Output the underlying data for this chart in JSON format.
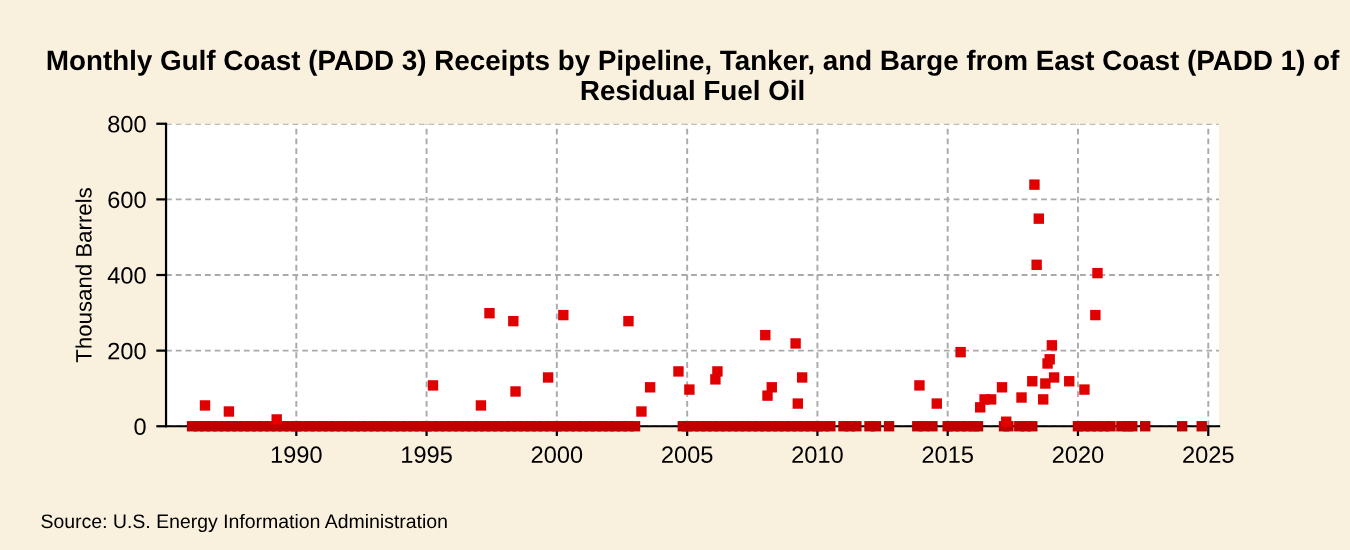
{
  "chart_data": {
    "type": "scatter",
    "title": "Monthly Gulf Coast (PADD 3) Receipts by Pipeline, Tanker, and Barge from East Coast (PADD 1) of Residual Fuel Oil",
    "ylabel": "Thousand Barrels",
    "annotations": [
      "Source: U.S. Energy Information Administration"
    ],
    "xlim": [
      "1985",
      "2025-06"
    ],
    "xticks": [
      "1990",
      "1995",
      "2000",
      "2005",
      "2010",
      "2015",
      "2020",
      "2025"
    ],
    "ylim": [
      0,
      800
    ],
    "yticks": [
      0,
      200,
      400,
      600,
      800
    ],
    "grid": true,
    "marker": "square",
    "series": [
      {
        "color": "#c00000",
        "x": [
          "1986-01",
          "1986-04",
          "1986-07",
          "1986-10",
          "1987-01",
          "1987-04",
          "1987-07",
          "1987-10",
          "1988-01",
          "1988-04",
          "1988-07",
          "1988-10",
          "1989-01",
          "1989-04",
          "1989-07",
          "1989-10",
          "1990-01",
          "1990-04",
          "1990-07",
          "1990-10",
          "1991-01",
          "1991-04",
          "1991-07",
          "1991-10",
          "1992-01",
          "1992-04",
          "1992-07",
          "1992-10",
          "1993-01",
          "1993-04",
          "1993-07",
          "1993-10",
          "1994-01",
          "1994-04",
          "1994-07",
          "1994-10",
          "1995-01",
          "1995-04",
          "1995-07",
          "1995-10",
          "1996-01",
          "1996-04",
          "1996-07",
          "1996-10",
          "1997-01",
          "1997-04",
          "1997-07",
          "1997-10",
          "1998-01",
          "1998-04",
          "1998-07",
          "1998-10",
          "1999-01",
          "1999-04",
          "1999-07",
          "1999-10",
          "2000-01",
          "2000-04",
          "2000-07",
          "2000-10",
          "2001-01",
          "2001-04",
          "2001-07",
          "2001-10",
          "2002-01",
          "2002-04",
          "2002-07",
          "2002-10",
          "2003-01",
          "2004-11",
          "2005-01",
          "2005-04",
          "2005-07",
          "2005-10",
          "2006-01",
          "2006-04",
          "2006-07",
          "2006-10",
          "2007-01",
          "2007-04",
          "2007-07",
          "2007-10",
          "2008-01",
          "2008-04",
          "2008-07",
          "2008-10",
          "2009-01",
          "2009-04",
          "2009-07",
          "2009-10",
          "2010-01",
          "2010-04",
          "2010-07",
          "2011-01",
          "2011-04",
          "2011-07",
          "2012-01",
          "2012-04",
          "2012-10",
          "2013-11",
          "2014-02",
          "2014-06",
          "2015-01",
          "2015-04",
          "2015-07",
          "2015-10",
          "2016-01",
          "2016-03",
          "2017-03",
          "2017-05",
          "2017-10",
          "2018-01",
          "2018-04",
          "2020-01",
          "2020-04",
          "2020-07",
          "2020-10",
          "2021-01",
          "2021-04",
          "2021-09",
          "2021-12",
          "2022-02",
          "2022-08",
          "2024-01",
          "2024-10"
        ],
        "values": [
          0,
          0,
          0,
          0,
          0,
          0,
          0,
          0,
          0,
          0,
          0,
          0,
          0,
          0,
          0,
          0,
          0,
          0,
          0,
          0,
          0,
          0,
          0,
          0,
          0,
          0,
          0,
          0,
          0,
          0,
          0,
          0,
          0,
          0,
          0,
          0,
          0,
          0,
          0,
          0,
          0,
          0,
          0,
          0,
          0,
          0,
          0,
          0,
          0,
          0,
          0,
          0,
          0,
          0,
          0,
          0,
          0,
          0,
          0,
          0,
          0,
          0,
          0,
          0,
          0,
          0,
          0,
          0,
          0,
          0,
          0,
          0,
          0,
          0,
          0,
          0,
          0,
          0,
          0,
          0,
          0,
          0,
          0,
          0,
          0,
          0,
          0,
          0,
          0,
          0,
          0,
          0,
          0,
          0,
          0,
          0,
          0,
          0,
          0,
          0,
          0,
          0,
          0,
          0,
          0,
          0,
          0,
          0,
          0,
          0,
          0,
          0,
          0,
          0,
          0,
          0,
          0,
          0,
          0,
          0,
          0,
          0,
          0,
          0,
          0
        ]
      },
      {
        "color": "#e00000",
        "x": [
          "1986-07",
          "1987-06",
          "1989-04",
          "1995-04",
          "1997-02",
          "1997-06",
          "1998-05",
          "1998-06",
          "1999-09",
          "2000-04",
          "2002-10",
          "2003-04",
          "2003-08",
          "2004-09",
          "2005-02",
          "2006-02",
          "2006-03",
          "2008-01",
          "2008-02",
          "2008-04",
          "2009-03",
          "2009-04",
          "2009-06",
          "2013-12",
          "2014-08",
          "2015-07",
          "2016-04",
          "2016-06",
          "2016-09",
          "2017-02",
          "2017-04",
          "2017-11",
          "2018-04",
          "2018-05",
          "2018-06",
          "2018-07",
          "2018-09",
          "2018-10",
          "2018-11",
          "2018-12",
          "2019-01",
          "2019-02",
          "2019-09",
          "2020-04",
          "2020-09",
          "2020-10"
        ],
        "values": [
          55,
          39,
          18,
          108,
          55,
          299,
          278,
          92,
          129,
          294,
          278,
          39,
          103,
          145,
          97,
          124,
          145,
          241,
          81,
          103,
          219,
          60,
          129,
          108,
          60,
          196,
          50,
          71,
          71,
          103,
          12,
          76,
          119,
          639,
          427,
          549,
          71,
          113,
          166,
          177,
          214,
          129,
          119,
          97,
          294,
          405
        ]
      }
    ]
  }
}
